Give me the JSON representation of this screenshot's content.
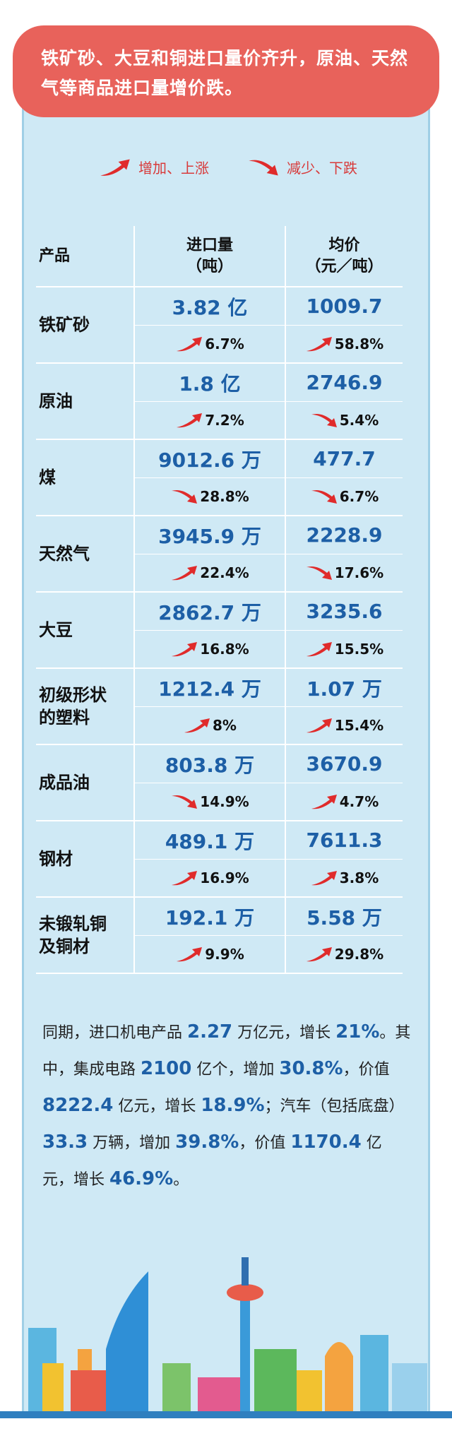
{
  "header": {
    "title": "铁矿砂、大豆和铜进口量价齐升，原油、天然气等商品进口量增价跌。"
  },
  "legend": {
    "up": "增加、上涨",
    "down": "减少、下跌"
  },
  "table": {
    "columns": [
      {
        "label": "产品"
      },
      {
        "label": "进口量",
        "unit": "（吨）"
      },
      {
        "label": "均价",
        "unit": "（元／吨）"
      }
    ],
    "rows": [
      {
        "product": "铁矿砂",
        "volume": "3.82 亿",
        "volume_change": {
          "dir": "up",
          "text": "6.7%"
        },
        "price": "1009.7",
        "price_change": {
          "dir": "up",
          "text": "58.8%"
        }
      },
      {
        "product": "原油",
        "volume": "1.8 亿",
        "volume_change": {
          "dir": "up",
          "text": "7.2%"
        },
        "price": "2746.9",
        "price_change": {
          "dir": "down",
          "text": "5.4%"
        }
      },
      {
        "product": "煤",
        "volume": "9012.6 万",
        "volume_change": {
          "dir": "down",
          "text": "28.8%"
        },
        "price": "477.7",
        "price_change": {
          "dir": "down",
          "text": "6.7%"
        }
      },
      {
        "product": "天然气",
        "volume": "3945.9 万",
        "volume_change": {
          "dir": "up",
          "text": "22.4%"
        },
        "price": "2228.9",
        "price_change": {
          "dir": "down",
          "text": "17.6%"
        }
      },
      {
        "product": "大豆",
        "volume": "2862.7 万",
        "volume_change": {
          "dir": "up",
          "text": "16.8%"
        },
        "price": "3235.6",
        "price_change": {
          "dir": "up",
          "text": "15.5%"
        }
      },
      {
        "product": "初级形状的塑料",
        "volume": "1212.4 万",
        "volume_change": {
          "dir": "up",
          "text": "8%"
        },
        "price": "1.07 万",
        "price_change": {
          "dir": "up",
          "text": "15.4%"
        }
      },
      {
        "product": "成品油",
        "volume": "803.8 万",
        "volume_change": {
          "dir": "down",
          "text": "14.9%"
        },
        "price": "3670.9",
        "price_change": {
          "dir": "up",
          "text": "4.7%"
        }
      },
      {
        "product": "钢材",
        "volume": "489.1 万",
        "volume_change": {
          "dir": "up",
          "text": "16.9%"
        },
        "price": "7611.3",
        "price_change": {
          "dir": "up",
          "text": "3.8%"
        }
      },
      {
        "product": "未锻轧铜及铜材",
        "volume": "192.1 万",
        "volume_change": {
          "dir": "up",
          "text": "9.9%"
        },
        "price": "5.58 万",
        "price_change": {
          "dir": "up",
          "text": "29.8%"
        }
      }
    ]
  },
  "body": {
    "paragraph": [
      {
        "text": "同期，进口机电产品 "
      },
      {
        "text": "2.27",
        "em": true
      },
      {
        "text": " 万亿元，增长 "
      },
      {
        "text": "21%",
        "em": true
      },
      {
        "text": "。其中，集成电路 "
      },
      {
        "text": "2100",
        "em": true
      },
      {
        "text": " 亿个，增加 "
      },
      {
        "text": "30.8%",
        "em": true
      },
      {
        "text": "，价值 "
      },
      {
        "text": "8222.4",
        "em": true
      },
      {
        "text": " 亿元，增长 "
      },
      {
        "text": "18.9%",
        "em": true
      },
      {
        "text": "；汽车（包括底盘）"
      },
      {
        "text": "33.3",
        "em": true
      },
      {
        "text": " 万辆，增加 "
      },
      {
        "text": "39.8%",
        "em": true
      },
      {
        "text": "，价值 "
      },
      {
        "text": "1170.4",
        "em": true
      },
      {
        "text": " 亿元，增长 "
      },
      {
        "text": "46.9%",
        "em": true
      },
      {
        "text": "。"
      }
    ]
  }
}
